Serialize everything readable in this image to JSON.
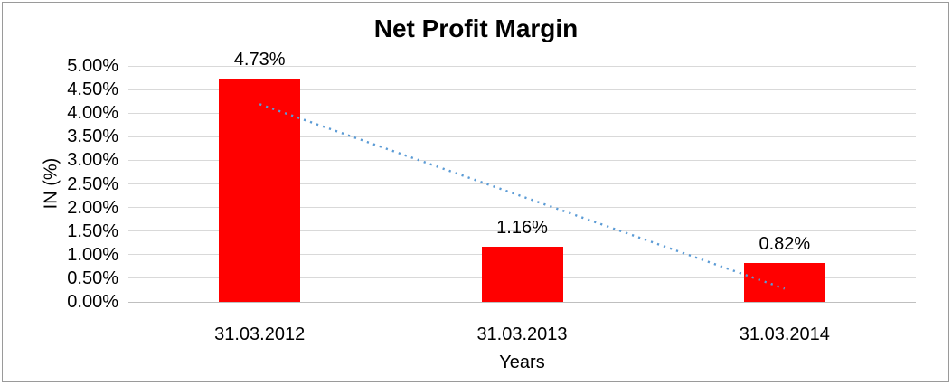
{
  "chart_data": {
    "type": "bar",
    "title": "Net Profit Margin",
    "categories": [
      "31.03.2012",
      "31.03.2013",
      "31.03.2014"
    ],
    "values": [
      4.73,
      1.16,
      0.82
    ],
    "data_labels": [
      "4.73%",
      "1.16%",
      "0.82%"
    ],
    "xlabel": "Years",
    "ylabel": "IN (%)",
    "ylim": [
      0,
      5
    ],
    "ytick_step": 0.5,
    "ytick_labels": [
      "0.00%",
      "0.50%",
      "1.00%",
      "1.50%",
      "2.00%",
      "2.50%",
      "3.00%",
      "3.50%",
      "4.00%",
      "4.50%",
      "5.00%"
    ],
    "grid": true,
    "legend": "none",
    "bar_color": "#ff0000",
    "gridline_color": "#d9d9d9",
    "axis_line_color": "#bfbfbf",
    "frame_border_color": "#9a9a9a",
    "text_color": "#000000",
    "trendline": {
      "type": "linear",
      "style": "dotted",
      "color": "#5b9bd5",
      "start_value": 4.19,
      "end_value": 0.28
    }
  }
}
